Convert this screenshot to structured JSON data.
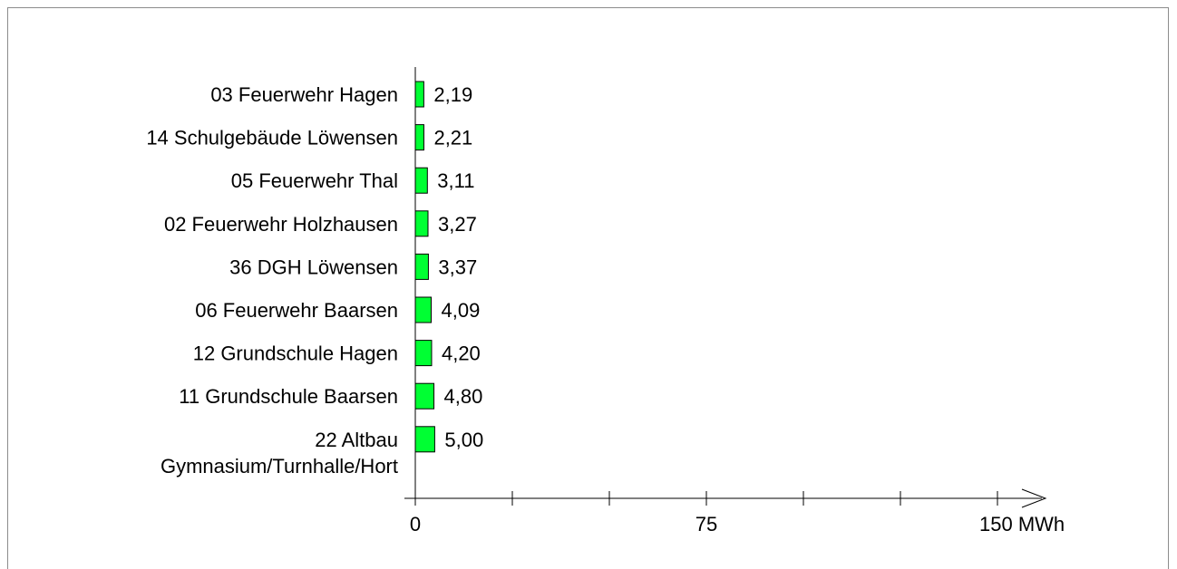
{
  "chart_data": {
    "type": "bar",
    "orientation": "horizontal",
    "categories": [
      [
        "03 Feuerwehr Hagen"
      ],
      [
        "14 Schulgebäude Löwensen"
      ],
      [
        "05 Feuerwehr Thal"
      ],
      [
        "02 Feuerwehr Holzhausen"
      ],
      [
        "36 DGH Löwensen"
      ],
      [
        "06 Feuerwehr Baarsen"
      ],
      [
        "12 Grundschule Hagen"
      ],
      [
        "11 Grundschule Baarsen"
      ],
      [
        "22 Altbau ",
        "Gymnasium/Turnhalle/Hort"
      ]
    ],
    "values": [
      2.19,
      2.21,
      3.11,
      3.27,
      3.37,
      4.09,
      4.2,
      4.8,
      5.0
    ],
    "value_labels": [
      "2,19",
      "2,21",
      "3,11",
      "3,27",
      "3,37",
      "4,09",
      "4,20",
      "4,80",
      "5,00"
    ],
    "xlim": [
      0,
      150
    ],
    "tick_labels": [
      "0",
      "75",
      "150 MWh"
    ],
    "tick_label_values": [
      0,
      75,
      150
    ],
    "minor_tick_values": [
      25,
      50,
      100,
      125
    ],
    "bar_color": "#00ff33",
    "bar_outline": "#000000",
    "grid": false,
    "legend": "none"
  }
}
